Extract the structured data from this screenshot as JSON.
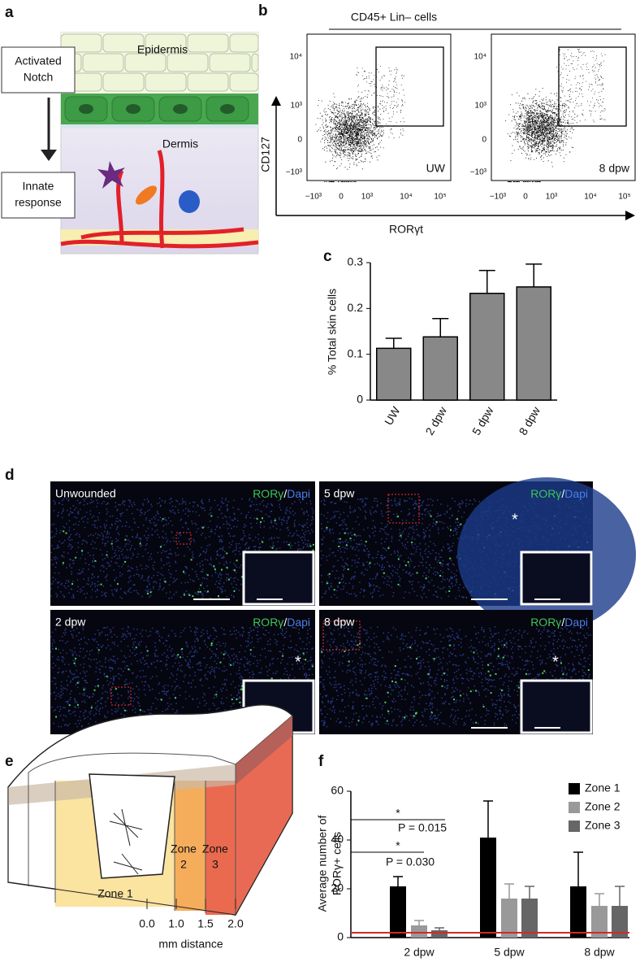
{
  "panel_letters": [
    "a",
    "b",
    "c",
    "d",
    "e",
    "f"
  ],
  "panel_a": {
    "epidermis": "Epidermis",
    "dermis": "Dermis",
    "box_top": [
      "Activated",
      "Notch"
    ],
    "box_bottom": [
      "Innate",
      "response"
    ]
  },
  "panel_b": {
    "title": "CD45+ Lin– cells",
    "y_label": "CD127",
    "x_label": "RORγt",
    "plots": [
      {
        "label": "UW"
      },
      {
        "label": "8 dpw"
      }
    ],
    "y_tick_labels": [
      "10⁴",
      "10³",
      "0",
      "−10³"
    ],
    "x_tick_labels": [
      "−10³",
      "0",
      "10³",
      "10⁴",
      "10⁵"
    ]
  },
  "panel_d": {
    "panels": [
      {
        "label": "Unwounded",
        "marker": "RORγ",
        "separator": "/",
        "counterstain": "Dapi"
      },
      {
        "label": "5 dpw",
        "marker": "RORγ",
        "separator": "/",
        "counterstain": "Dapi",
        "mark": "*"
      },
      {
        "label": "2 dpw",
        "marker": "RORγ",
        "separator": "/",
        "counterstain": "Dapi",
        "mark": "*"
      },
      {
        "label": "8 dpw",
        "marker": "RORγ",
        "separator": "/",
        "counterstain": "Dapi",
        "mark": "*"
      }
    ]
  },
  "panel_e": {
    "zones": [
      [
        "Zone 1"
      ],
      [
        "Zone",
        "2"
      ],
      [
        "Zone",
        "3"
      ]
    ],
    "distance_labels": [
      "0.0",
      "1.0",
      "1.5",
      "2.0"
    ],
    "axis_label": "mm distance"
  },
  "chart_data": [
    {
      "type": "bar",
      "categories": [
        "UW",
        "2 dpw",
        "5 dpw",
        "8 dpw"
      ],
      "values": [
        0.113,
        0.138,
        0.233,
        0.247
      ],
      "errors": [
        0.022,
        0.04,
        0.05,
        0.05
      ],
      "color": "#888888",
      "y_label": "% Total skin cells",
      "ylim": [
        0,
        0.3
      ],
      "yticks": [
        0,
        0.1,
        0.2,
        0.3
      ]
    },
    {
      "type": "grouped_bar",
      "y_label": [
        "Average number of",
        "RORγ+ cells"
      ],
      "categories": [
        "2 dpw",
        "5 dpw",
        "8 dpw"
      ],
      "series": [
        {
          "name": "Zone 1",
          "color": "#000000",
          "values": [
            21,
            41,
            21
          ],
          "errors": [
            4,
            15,
            14
          ]
        },
        {
          "name": "Zone 2",
          "color": "#999999",
          "values": [
            5,
            16,
            13
          ],
          "errors": [
            2,
            6,
            5
          ]
        },
        {
          "name": "Zone 3",
          "color": "#666666",
          "values": [
            3,
            16,
            13
          ],
          "errors": [
            1,
            5,
            8
          ]
        }
      ],
      "ylim": [
        0,
        60
      ],
      "yticks": [
        0,
        20,
        40,
        60
      ],
      "reference_line": 2,
      "reference_color": "#d62728",
      "annotations": [
        {
          "text": "*"
        },
        {
          "text": "P = 0.015"
        },
        {
          "text": "*"
        },
        {
          "text": "P = 0.030"
        }
      ],
      "legend": "upper right"
    }
  ]
}
